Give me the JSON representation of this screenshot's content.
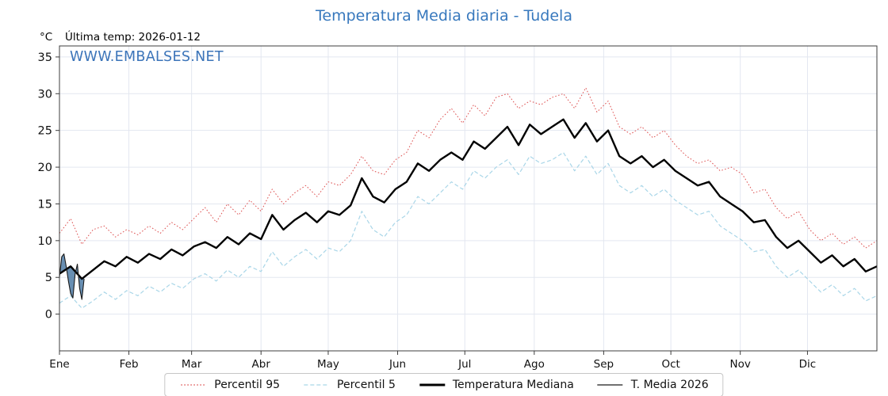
{
  "chart_data": {
    "type": "line",
    "title": "Temperatura Media diaria - Tudela",
    "unit_label": "°C",
    "last_temp_label": "Última temp: 2026-01-12",
    "watermark": "WWW.EMBALSES.NET",
    "title_color": "#3778bd",
    "watermark_color": "#3b74b9",
    "ylim": [
      -5,
      36.5
    ],
    "yticks": [
      0,
      5,
      10,
      15,
      20,
      25,
      30,
      35
    ],
    "x_total_days": 365,
    "step_days": 5,
    "grid": true,
    "legend_position": "bottom-center",
    "months": [
      {
        "label": "Ene",
        "day": 0
      },
      {
        "label": "Feb",
        "day": 31
      },
      {
        "label": "Mar",
        "day": 59
      },
      {
        "label": "Abr",
        "day": 90
      },
      {
        "label": "May",
        "day": 120
      },
      {
        "label": "Jun",
        "day": 151
      },
      {
        "label": "Jul",
        "day": 181
      },
      {
        "label": "Ago",
        "day": 212
      },
      {
        "label": "Sep",
        "day": 243
      },
      {
        "label": "Oct",
        "day": 273
      },
      {
        "label": "Nov",
        "day": 304
      },
      {
        "label": "Dic",
        "day": 334
      }
    ],
    "series": [
      {
        "name": "Percentil 95",
        "role": "p95",
        "color": "#dd5050",
        "style": "dotted",
        "width": 1,
        "values": [
          11.0,
          13.0,
          9.5,
          11.5,
          12.0,
          10.5,
          11.5,
          10.8,
          12.0,
          11.0,
          12.5,
          11.5,
          13.0,
          14.5,
          12.5,
          15.0,
          13.5,
          15.5,
          14.0,
          17.0,
          15.0,
          16.5,
          17.5,
          16.0,
          18.0,
          17.5,
          19.0,
          21.5,
          19.5,
          19.0,
          21.0,
          22.0,
          25.0,
          24.0,
          26.5,
          28.0,
          26.0,
          28.5,
          27.0,
          29.5,
          30.0,
          28.0,
          29.0,
          28.5,
          29.5,
          30.0,
          28.0,
          30.8,
          27.5,
          29.0,
          25.5,
          24.5,
          25.5,
          24.0,
          25.0,
          23.0,
          21.5,
          20.5,
          21.0,
          19.5,
          20.0,
          19.0,
          16.5,
          17.0,
          14.5,
          13.0,
          14.0,
          11.5,
          10.0,
          11.0,
          9.5,
          10.5,
          9.0,
          10.0
        ]
      },
      {
        "name": "Percentil 5",
        "role": "p05",
        "color": "#a9d6e8",
        "style": "dashed",
        "width": 1.2,
        "values": [
          1.5,
          2.5,
          0.8,
          1.8,
          3.0,
          2.0,
          3.2,
          2.5,
          3.8,
          3.0,
          4.2,
          3.5,
          4.8,
          5.5,
          4.5,
          6.0,
          5.0,
          6.5,
          5.8,
          8.5,
          6.5,
          7.8,
          8.8,
          7.5,
          9.0,
          8.5,
          10.0,
          14.0,
          11.5,
          10.5,
          12.5,
          13.5,
          16.0,
          15.0,
          16.5,
          18.0,
          17.0,
          19.5,
          18.5,
          20.0,
          21.0,
          19.0,
          21.5,
          20.5,
          21.0,
          22.0,
          19.5,
          21.5,
          19.0,
          20.5,
          17.5,
          16.5,
          17.5,
          16.0,
          17.0,
          15.5,
          14.5,
          13.5,
          14.0,
          12.0,
          11.0,
          10.0,
          8.5,
          8.8,
          6.5,
          5.0,
          6.0,
          4.5,
          3.0,
          4.0,
          2.5,
          3.5,
          1.8,
          2.5
        ]
      },
      {
        "name": "Temperatura Mediana",
        "role": "median",
        "color": "#000000",
        "style": "solid",
        "width": 2.4,
        "values": [
          5.5,
          6.5,
          4.8,
          6.0,
          7.2,
          6.5,
          7.8,
          7.0,
          8.2,
          7.5,
          8.8,
          8.0,
          9.2,
          9.8,
          9.0,
          10.5,
          9.5,
          11.0,
          10.2,
          13.5,
          11.5,
          12.8,
          13.8,
          12.5,
          14.0,
          13.5,
          14.8,
          18.5,
          16.0,
          15.2,
          17.0,
          18.0,
          20.5,
          19.5,
          21.0,
          22.0,
          21.0,
          23.5,
          22.5,
          24.0,
          25.5,
          23.0,
          25.8,
          24.5,
          25.5,
          26.5,
          24.0,
          26.0,
          23.5,
          25.0,
          21.5,
          20.5,
          21.5,
          20.0,
          21.0,
          19.5,
          18.5,
          17.5,
          18.0,
          16.0,
          15.0,
          14.0,
          12.5,
          12.8,
          10.5,
          9.0,
          10.0,
          8.5,
          7.0,
          8.0,
          6.5,
          7.5,
          5.8,
          6.5
        ]
      },
      {
        "name": "T. Media 2026",
        "role": "current",
        "color": "#1a1a1a",
        "style": "solid",
        "width": 1.1,
        "fill_to_median": true,
        "fill_color": "#4d7ba6",
        "days": [
          0,
          1,
          2,
          3,
          4,
          5,
          6,
          7,
          8,
          9,
          10,
          11
        ],
        "values": [
          5.0,
          7.8,
          8.2,
          6.5,
          4.5,
          2.8,
          2.2,
          5.5,
          6.8,
          3.5,
          2.0,
          4.8
        ]
      }
    ]
  }
}
